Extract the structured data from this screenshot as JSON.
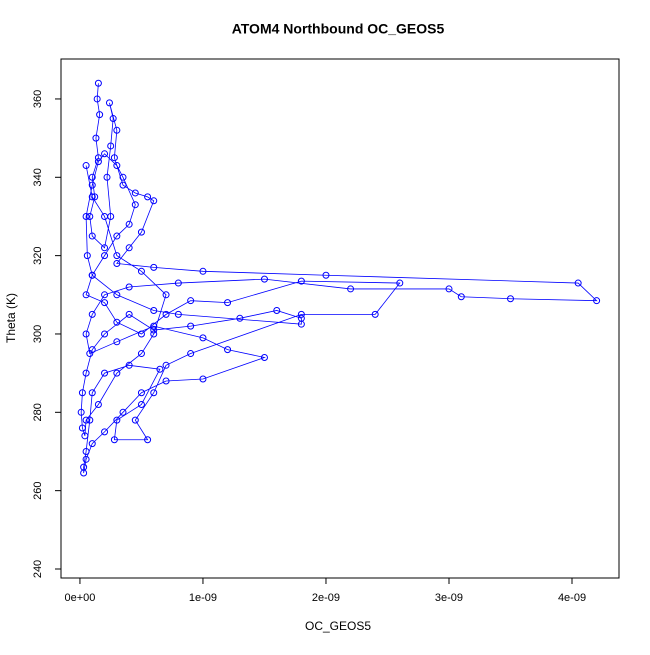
{
  "chart_data": {
    "type": "line",
    "title": "ATOM4 Northbound OC_GEOS5",
    "x_label": "OC_GEOS5",
    "y_label": "Theta (K)",
    "color": "#0000ff",
    "markers": true,
    "xlim": [
      -1.54e-10,
      4.382e-09
    ],
    "ylim": [
      237.7,
      370.2
    ],
    "xticks": [
      {
        "value": 0,
        "label": "0e+00"
      },
      {
        "value": 1e-09,
        "label": "1e-09"
      },
      {
        "value": 2e-09,
        "label": "2e-09"
      },
      {
        "value": 3e-09,
        "label": "3e-09"
      },
      {
        "value": 4e-09,
        "label": "4e-09"
      }
    ],
    "yticks": [
      240,
      260,
      280,
      300,
      320,
      340,
      360
    ],
    "x": [
      1.5e-10,
      1.4e-10,
      1.6e-10,
      1.3e-10,
      1.5e-10,
      1e-10,
      1.2e-10,
      8e-11,
      1e-10,
      2e-10,
      2.5e-10,
      2.2e-10,
      2.5e-10,
      2.7e-10,
      2.4e-10,
      3e-10,
      2.8e-10,
      3.5e-10,
      4.5e-10,
      5.5e-10,
      6e-10,
      5e-10,
      4e-10,
      3e-10,
      6e-10,
      1e-09,
      2e-09,
      4.05e-09,
      4.2e-09,
      3.5e-09,
      3.1e-09,
      3e-09,
      2.2e-09,
      1.5e-09,
      8e-10,
      4e-10,
      2e-10,
      1e-10,
      5e-11,
      8e-11,
      3e-10,
      6e-10,
      1e-09,
      1.2e-09,
      1.5e-09,
      1e-09,
      7e-10,
      5e-10,
      3.5e-10,
      2e-10,
      1e-10,
      5e-11,
      3e-11,
      3e-11,
      5e-11,
      8e-11,
      1e-10,
      2e-10,
      4e-10,
      6.5e-10,
      5e-10,
      3e-10,
      2.8e-10,
      5.5e-10,
      4.5e-10,
      6e-10,
      7e-10,
      9e-10,
      1.8e-09,
      2.4e-09,
      2.6e-09,
      1.8e-09,
      1.2e-09,
      9e-10,
      7e-10,
      5e-10,
      3e-10,
      2e-10,
      5e-11,
      1e-10,
      2e-10,
      3e-10,
      4e-10,
      4.5e-10,
      3.5e-10,
      3e-10,
      2e-10,
      1.5e-10,
      1e-10,
      5e-11,
      6e-11,
      1e-10,
      3e-10,
      6e-10,
      8e-10,
      1.8e-09,
      1.8e-09,
      1.6e-09,
      1.3e-09,
      9e-10,
      6e-10,
      4e-10,
      2e-10,
      1e-10,
      5e-11,
      2e-11,
      1e-11,
      2e-11,
      4e-11,
      5e-11,
      1.5e-10,
      3e-10,
      5e-10,
      6e-10,
      7e-10,
      5e-10,
      3e-10,
      2e-10,
      1e-10,
      5e-11
    ],
    "series": [
      {
        "color": "#0000ff",
        "values": [
          364,
          360,
          356,
          350,
          345,
          340,
          335,
          330,
          325,
          322,
          330,
          340,
          348,
          355,
          359,
          352,
          345,
          338,
          336,
          335,
          334,
          326,
          322,
          318,
          317,
          316,
          315,
          313,
          308.5,
          309,
          309.5,
          311.5,
          311.5,
          314,
          313,
          312,
          310,
          305,
          300,
          295,
          298,
          302,
          299,
          296,
          294,
          288.5,
          288,
          285,
          280,
          275,
          272,
          268,
          264.5,
          266,
          270,
          278,
          285,
          290,
          292,
          291,
          282,
          278,
          273,
          273,
          278,
          285,
          292,
          295,
          305,
          305,
          313,
          313.5,
          308,
          308.5,
          305,
          300,
          303,
          308,
          310,
          315,
          320,
          325,
          328,
          333,
          340,
          343,
          346,
          344,
          338,
          330,
          320,
          315,
          310,
          306,
          305,
          302.5,
          304,
          306,
          304,
          302,
          301,
          305,
          300,
          296,
          290,
          285,
          280,
          276,
          274,
          278,
          282,
          290,
          295,
          300,
          310,
          316,
          320,
          330,
          335,
          343
        ]
      }
    ]
  }
}
